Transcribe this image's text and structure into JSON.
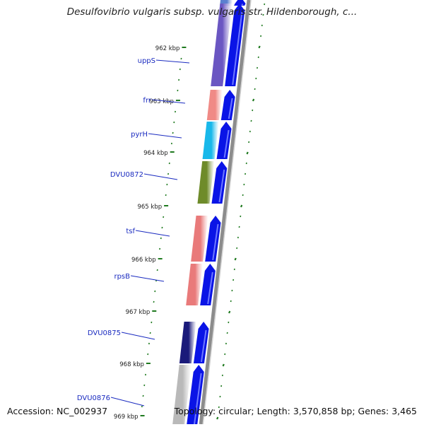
{
  "title": "Desulfovibrio vulgaris subsp. vulgaris str. Hildenborough, c...",
  "footer": {
    "accession": "Accession: NC_002937",
    "summary": "Topology: circular; Length: 3,570,858 bp; Genes: 3,465"
  },
  "ruler_labels": [
    "962 kbp",
    "963 kbp",
    "964 kbp",
    "965 kbp",
    "966 kbp",
    "967 kbp",
    "968 kbp",
    "969 kbp"
  ],
  "genes": [
    {
      "name": "",
      "color": "#5b7fd0"
    },
    {
      "name": "uppS",
      "color": "#6a56c2"
    },
    {
      "name": "frr",
      "color": "#f08a86"
    },
    {
      "name": "pyrH",
      "color": "#18b8ea"
    },
    {
      "name": "DVU0872",
      "color": "#6e8b2a"
    },
    {
      "name": "tsf",
      "color": "#e97a7a"
    },
    {
      "name": "rpsB",
      "color": "#e97a7a"
    },
    {
      "name": "DVU0875",
      "color": "#1a1a7a"
    },
    {
      "name": "DVU0876",
      "color": "#b9b9b9"
    }
  ],
  "colors": {
    "cds_arrow": "#0a14e6",
    "ruler_tick": "#1f7a1f",
    "gene_label": "#1a2bc0",
    "backbone": "#8c8c8c"
  }
}
